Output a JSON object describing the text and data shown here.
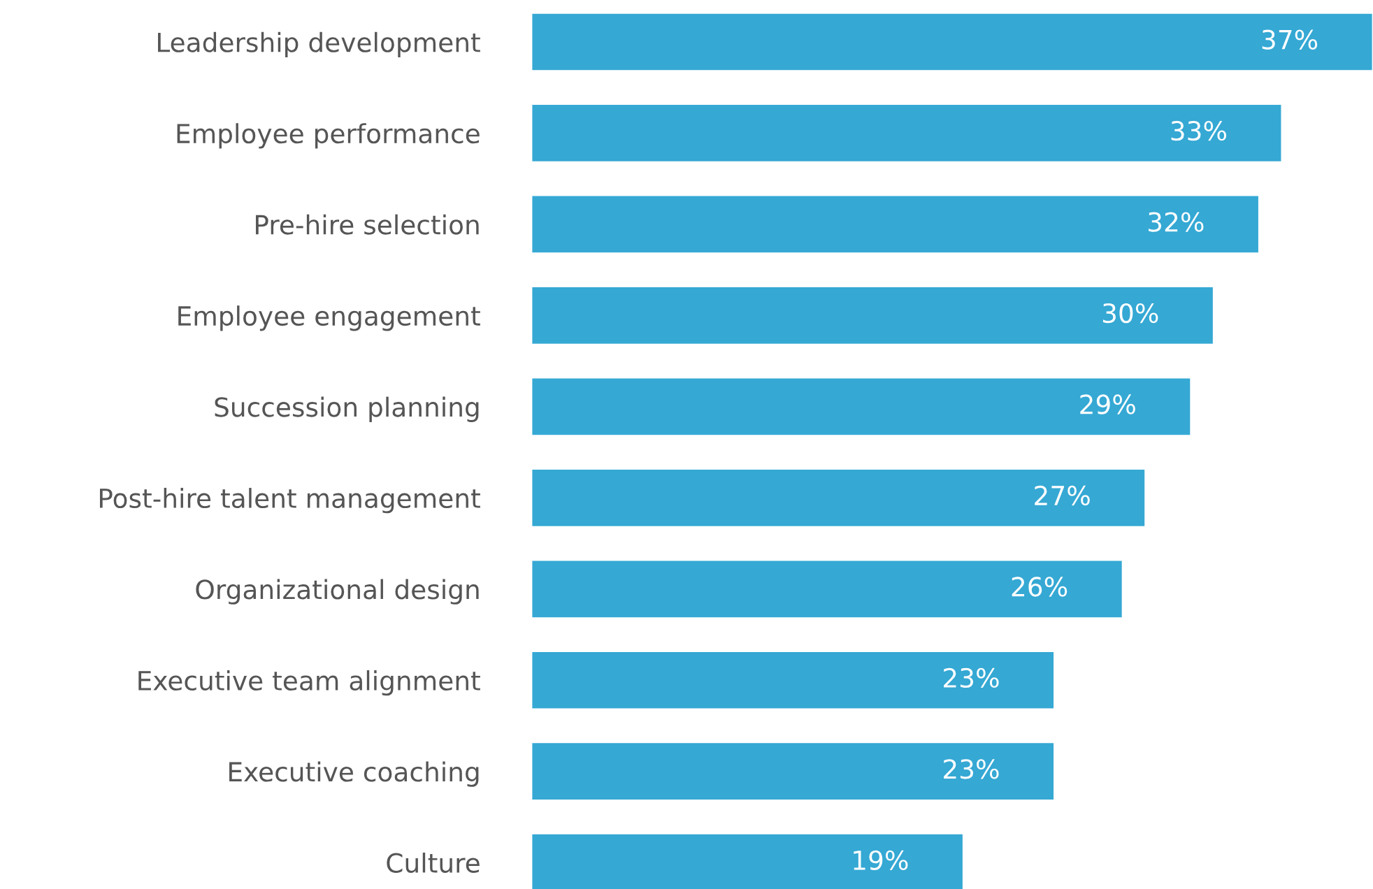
{
  "chart_data": {
    "type": "bar",
    "orientation": "horizontal",
    "categories": [
      "Leadership development",
      "Employee performance",
      "Pre-hire selection",
      "Employee engagement",
      "Succession planning",
      "Post-hire talent management",
      "Organizational design",
      "Executive team alignment",
      "Executive coaching",
      "Culture"
    ],
    "values": [
      37,
      33,
      32,
      30,
      29,
      27,
      26,
      23,
      23,
      19
    ],
    "value_labels": [
      "37%",
      "33%",
      "32%",
      "30%",
      "29%",
      "27%",
      "26%",
      "23%",
      "23%",
      "19%"
    ],
    "color": "#35a8d4",
    "grid": false,
    "legend": false
  }
}
